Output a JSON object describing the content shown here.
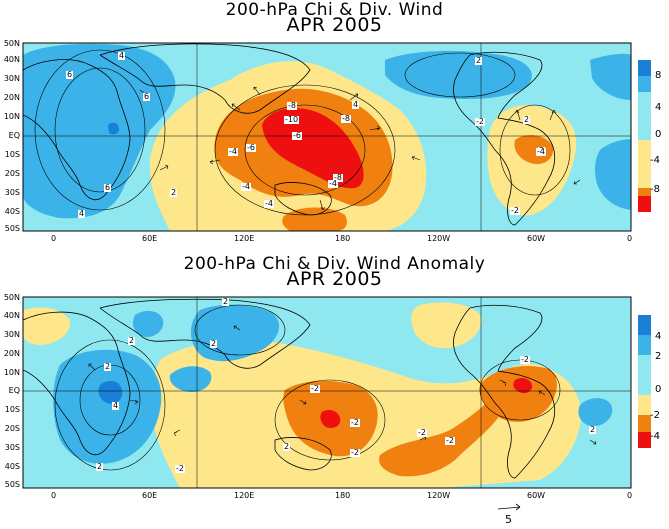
{
  "colors": {
    "strong_pos": "#1a7fd6",
    "pos": "#3cb3e8",
    "weak_pos": "#8fe8f0",
    "weak_neg": "#fde78a",
    "neg": "#f08010",
    "strong_neg": "#ee1010",
    "land": "#000000"
  },
  "top_panel": {
    "title_line1": "200-hPa Chi & Div. Wind",
    "title_line2": "APR 2005",
    "colorbar_labels": [
      "8",
      "4",
      "0",
      "-4",
      "-8"
    ],
    "contour_labels": [
      "4",
      "6",
      "6",
      "2",
      "6",
      "4",
      "4",
      "-8",
      "-10",
      "-8",
      "-6",
      "-8",
      "-4",
      "-4",
      "-6",
      "-2",
      "2",
      "2",
      "-4",
      "-2",
      "2",
      "-4",
      "-4"
    ]
  },
  "bottom_panel": {
    "title_line1": "200-hPa Chi & Div. Wind Anomaly",
    "title_line2": "APR 2005",
    "colorbar_labels": [
      "4",
      "2",
      "0",
      "-2",
      "-4"
    ],
    "contour_labels": [
      "2",
      "2",
      "2",
      "4",
      "2",
      "2",
      "-2",
      "-2",
      "-2",
      "-2",
      "-2",
      "2",
      "2",
      "-2",
      "-2"
    ]
  },
  "lat_labels": [
    "50N",
    "40N",
    "30N",
    "20N",
    "10N",
    "EQ",
    "10S",
    "20S",
    "30S",
    "40S",
    "50S"
  ],
  "lon_labels": [
    "0",
    "60E",
    "120E",
    "180",
    "120W",
    "60W",
    "0"
  ],
  "reference_vector_label": "5"
}
